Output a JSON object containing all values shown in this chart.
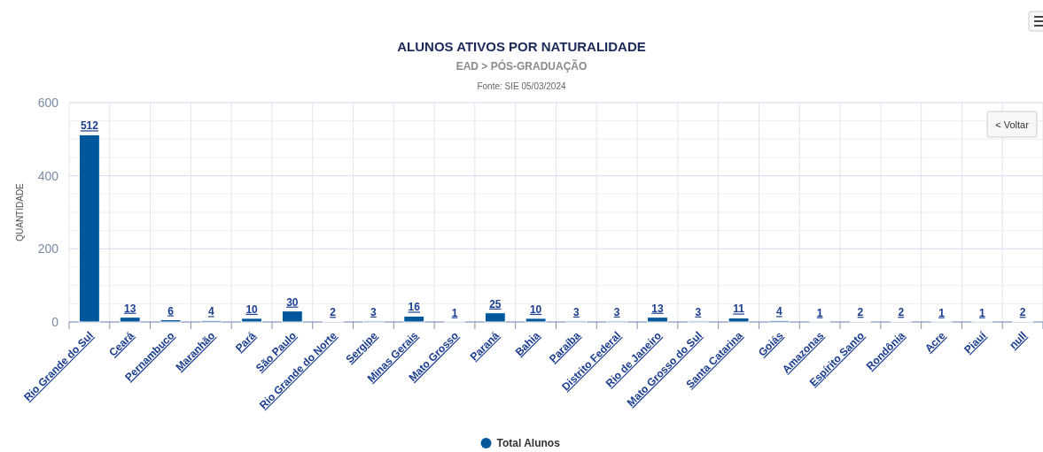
{
  "chart_data": {
    "type": "bar",
    "title": "ALUNOS ATIVOS POR NATURALIDADE",
    "subtitle": "EAD > PÓS-GRADUAÇÃO",
    "annotations": [
      "Fonte: SIE 05/03/2024",
      "< Voltar"
    ],
    "ylabel": "QUANTIDADE",
    "categories": [
      "Rio Grande do Sul",
      "Ceará",
      "Pernambuco",
      "Maranhão",
      "Pará",
      "São Paulo",
      "Rio Grande do Norte",
      "Sergipe",
      "Minas Gerais",
      "Mato Grosso",
      "Paraná",
      "Bahia",
      "Paraíba",
      "Distrito Federal",
      "Rio de Janeiro",
      "Mato Grosso do Sul",
      "Santa Catarina",
      "Goiás",
      "Amazonas",
      "Espírito Santo",
      "Rondônia",
      "Acre",
      "Piauí",
      "null"
    ],
    "series": [
      {
        "name": "Total Alunos",
        "color": "#01579b",
        "values": [
          512,
          13,
          6,
          4,
          10,
          30,
          2,
          3,
          16,
          1,
          25,
          10,
          3,
          3,
          13,
          3,
          11,
          4,
          1,
          2,
          2,
          1,
          1,
          2
        ]
      }
    ],
    "ylim": [
      0,
      600
    ],
    "yticks": [
      0,
      {
        "value": 50,
        "label": null
      },
      {
        "value": 100,
        "label": null
      },
      {
        "value": 150,
        "label": null
      },
      200,
      {
        "value": 250,
        "label": null
      },
      {
        "value": 300,
        "label": null
      },
      {
        "value": 350,
        "label": null
      },
      400,
      {
        "value": 450,
        "label": null
      },
      {
        "value": 500,
        "label": null
      },
      {
        "value": 550,
        "label": null
      },
      600
    ],
    "grid": true,
    "legend": "bottom",
    "data_labels": true
  }
}
